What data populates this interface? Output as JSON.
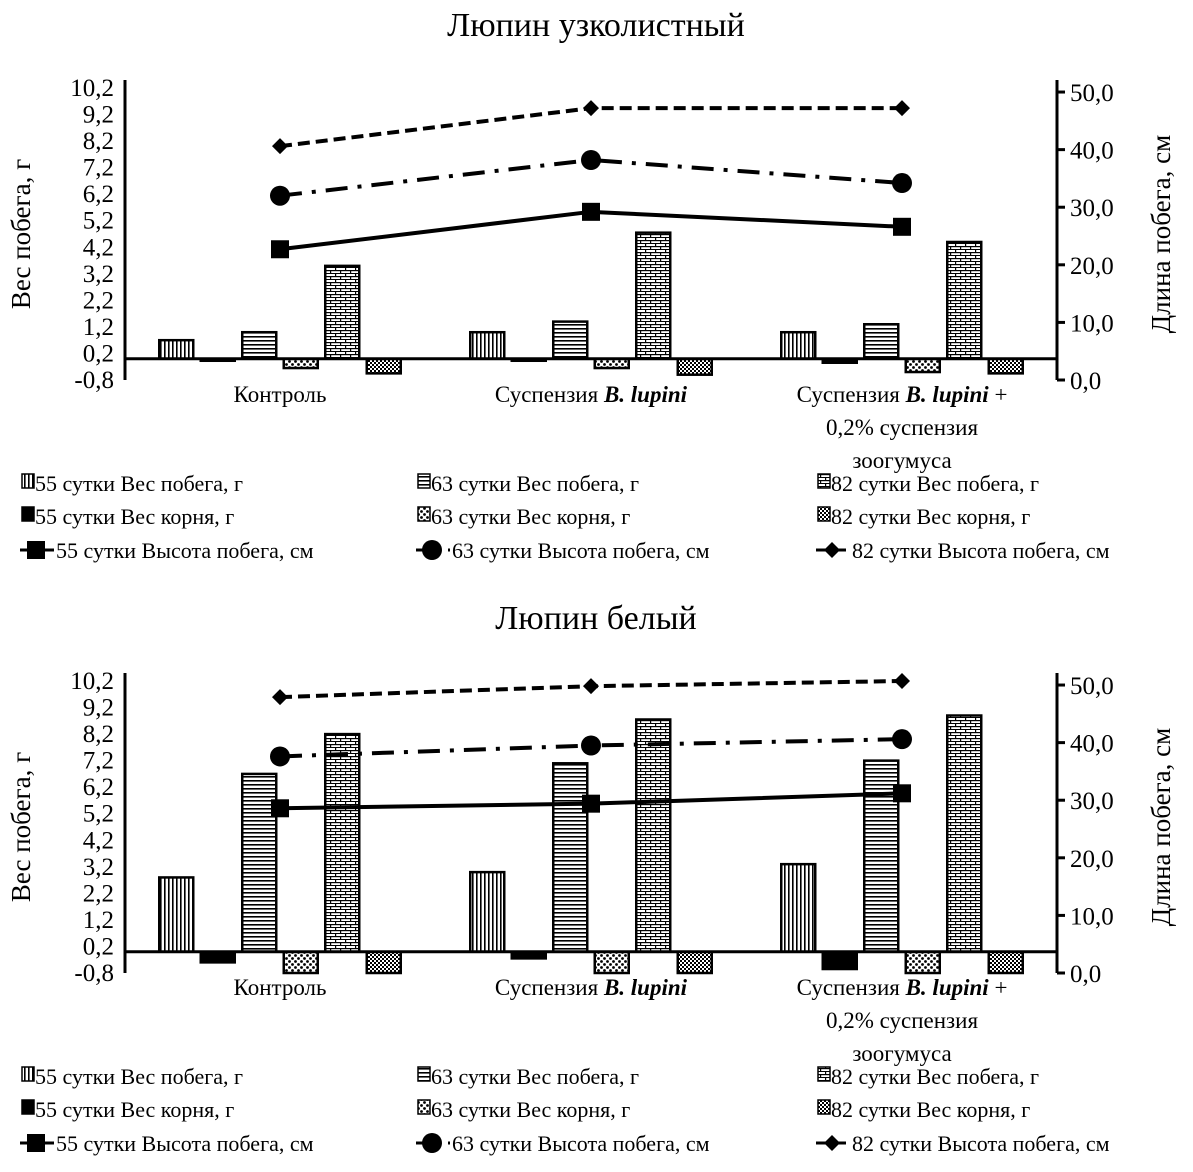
{
  "chart_data": [
    {
      "type": "bar+line",
      "title": "Люпин узколистный",
      "ylabel": "Вес побега, г",
      "ylabel_right": "Длина побега, см",
      "ylim": [
        -0.8,
        10.2
      ],
      "yticks": [
        "10,2",
        "9,2",
        "8,2",
        "7,2",
        "6,2",
        "5,2",
        "4,2",
        "3,2",
        "2,2",
        "1,2",
        "0,2",
        "-0,8"
      ],
      "ylim_right": [
        0,
        50.7
      ],
      "yticks_right": [
        "50,0",
        "40,0",
        "30,0",
        "20,0",
        "10,0",
        "0,0"
      ],
      "categories": [
        "Контроль",
        "Суспензия B. lupini",
        "Суспензия B. lupini + 0,2% суспензия зоогумуса"
      ],
      "bar_series": [
        {
          "name": "55 сутки Вес побега, г",
          "pattern": "vertical-lines",
          "values": [
            0.7,
            1.0,
            1.0
          ]
        },
        {
          "name": "55 сутки Вес корня, г",
          "pattern": "solid-black",
          "values": [
            -0.05,
            -0.05,
            -0.15
          ]
        },
        {
          "name": "63 сутки Вес побега, г",
          "pattern": "horizontal-lines",
          "values": [
            1.0,
            1.4,
            1.3
          ]
        },
        {
          "name": "63 сутки Вес корня, г",
          "pattern": "dots",
          "values": [
            -0.35,
            -0.35,
            -0.5
          ]
        },
        {
          "name": "82 сутки Вес побега, г",
          "pattern": "bricks",
          "values": [
            3.5,
            4.75,
            4.4
          ]
        },
        {
          "name": "82 сутки Вес корня, г",
          "pattern": "checker",
          "values": [
            -0.55,
            -0.6,
            -0.55
          ]
        }
      ],
      "line_series": [
        {
          "name": "55 сутки Высота побега, см",
          "style": "solid",
          "marker": "square",
          "values": [
            22.7,
            29.2,
            26.6
          ]
        },
        {
          "name": "63 сутки Высота побега, см",
          "style": "dash-dot",
          "marker": "circle",
          "values": [
            32.0,
            38.2,
            34.2
          ]
        },
        {
          "name": "82 сутки Высота побега, см",
          "style": "dashed",
          "marker": "diamond",
          "values": [
            40.6,
            47.2,
            47.2
          ]
        }
      ],
      "legend_position": "bottom"
    },
    {
      "type": "bar+line",
      "title": "Люпин белый",
      "ylabel": "Вес побега, г",
      "ylabel_right": "Длина побега, см",
      "ylim": [
        -0.8,
        10.2
      ],
      "yticks": [
        "10,2",
        "9,2",
        "8,2",
        "7,2",
        "6,2",
        "5,2",
        "4,2",
        "3,2",
        "2,2",
        "1,2",
        "0,2",
        "-0,8"
      ],
      "ylim_right": [
        0,
        50.7
      ],
      "yticks_right": [
        "50,0",
        "40,0",
        "30,0",
        "20,0",
        "10,0",
        "0,0"
      ],
      "categories": [
        "Контроль",
        "Суспензия B. lupini",
        "Суспензия B. lupini + 0,2% суспензия зоогумуса"
      ],
      "bar_series": [
        {
          "name": "55 сутки Вес побега, г",
          "pattern": "vertical-lines",
          "values": [
            2.8,
            3.0,
            3.3
          ]
        },
        {
          "name": "55 сутки Вес корня, г",
          "pattern": "solid-black",
          "values": [
            -0.4,
            -0.25,
            -0.65
          ]
        },
        {
          "name": "63 сутки Вес побега, г",
          "pattern": "horizontal-lines",
          "values": [
            6.7,
            7.1,
            7.2
          ]
        },
        {
          "name": "63 сутки Вес корня, г",
          "pattern": "dots",
          "values": [
            -0.8,
            -0.8,
            -0.8
          ]
        },
        {
          "name": "82 сутки Вес побега, г",
          "pattern": "bricks",
          "values": [
            8.2,
            8.75,
            8.9
          ]
        },
        {
          "name": "82 сутки Вес корня, г",
          "pattern": "checker",
          "values": [
            -0.8,
            -0.8,
            -0.8
          ]
        }
      ],
      "line_series": [
        {
          "name": "55 сутки Высота побега, см",
          "style": "solid",
          "marker": "square",
          "values": [
            28.6,
            29.4,
            31.2
          ]
        },
        {
          "name": "63 сутки Высота побега, см",
          "style": "dash-dot",
          "marker": "circle",
          "values": [
            37.6,
            39.5,
            40.6
          ]
        },
        {
          "name": "82 сутки Высота побега, см",
          "style": "dashed",
          "marker": "diamond",
          "values": [
            47.9,
            49.8,
            50.7
          ]
        }
      ],
      "legend_position": "bottom"
    }
  ]
}
